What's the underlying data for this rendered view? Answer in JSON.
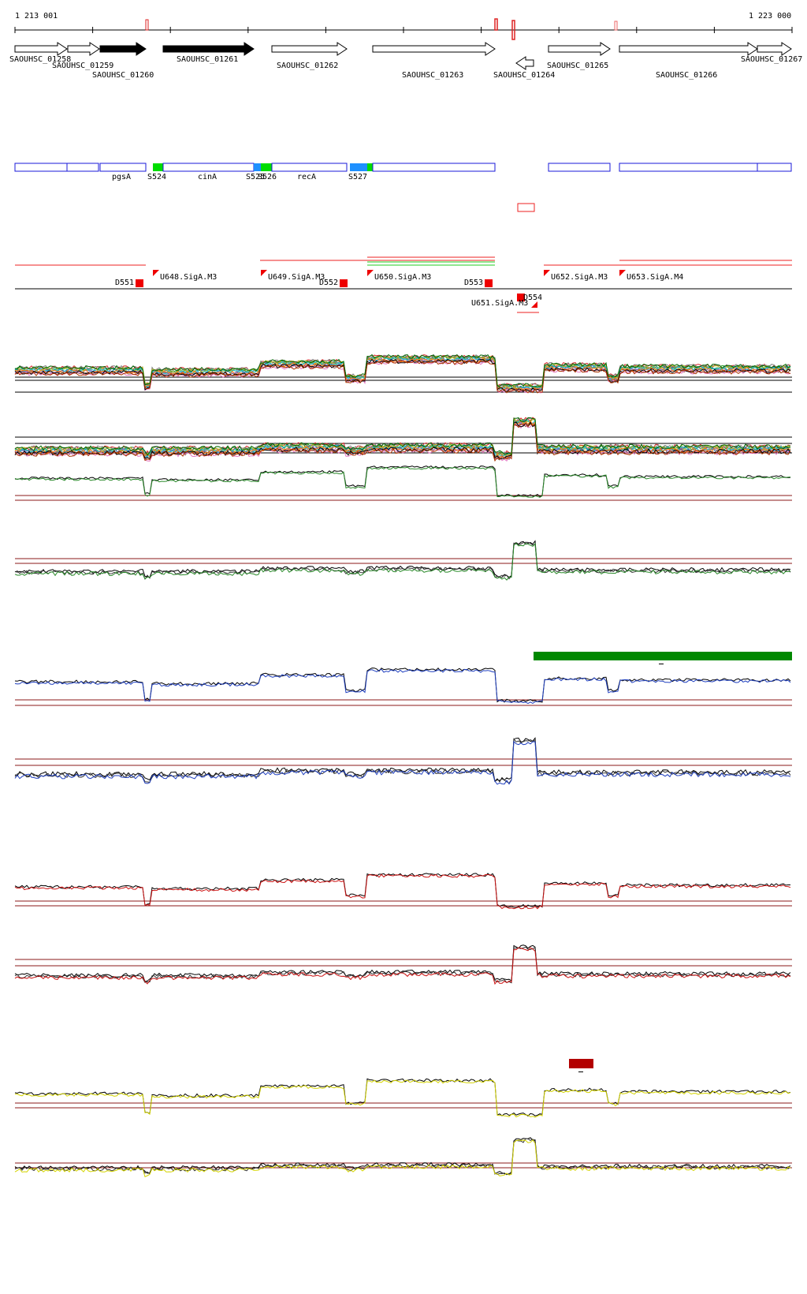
{
  "coordinates": {
    "start": "1 213 001",
    "end": "1 223 000"
  },
  "genes": [
    {
      "label": "SAOUHSC_01258",
      "strand": "+",
      "filled": false
    },
    {
      "label": "SAOUHSC_01259",
      "strand": "+",
      "filled": false
    },
    {
      "label": "SAOUHSC_01260",
      "strand": "+",
      "filled": true
    },
    {
      "label": "SAOUHSC_01261",
      "strand": "+",
      "filled": true
    },
    {
      "label": "SAOUHSC_01262",
      "strand": "+",
      "filled": false
    },
    {
      "label": "SAOUHSC_01263",
      "strand": "+",
      "filled": false
    },
    {
      "label": "SAOUHSC_01264",
      "strand": "-",
      "filled": false
    },
    {
      "label": "SAOUHSC_01265",
      "strand": "+",
      "filled": false
    },
    {
      "label": "SAOUHSC_01266",
      "strand": "+",
      "filled": false
    },
    {
      "label": "SAOUHSC_01267",
      "strand": "+",
      "filled": false
    }
  ],
  "segment_labels": [
    "pgsA",
    "S524",
    "cinA",
    "S525",
    "S526",
    "recA",
    "S527"
  ],
  "promoters": [
    "U648.SigA.M3",
    "U649.SigA.M3",
    "U650.SigA.M3",
    "U651.SigA.M3",
    "U652.SigA.M3",
    "U653.SigA.M4"
  ],
  "terminators": [
    "D551",
    "D552",
    "D553",
    "D554"
  ],
  "colors": {
    "blue_box": "#1a1ad8",
    "green": "#00dd00",
    "cyan": "#1e90ff",
    "red": "#ff0000",
    "dark_red": "#b30000",
    "dark_green": "#008800",
    "trace_blue": "#1f3fbf",
    "trace_red": "#cc1111",
    "trace_yellow": "#d4d400",
    "trace_green": "#2a8a2a"
  }
}
